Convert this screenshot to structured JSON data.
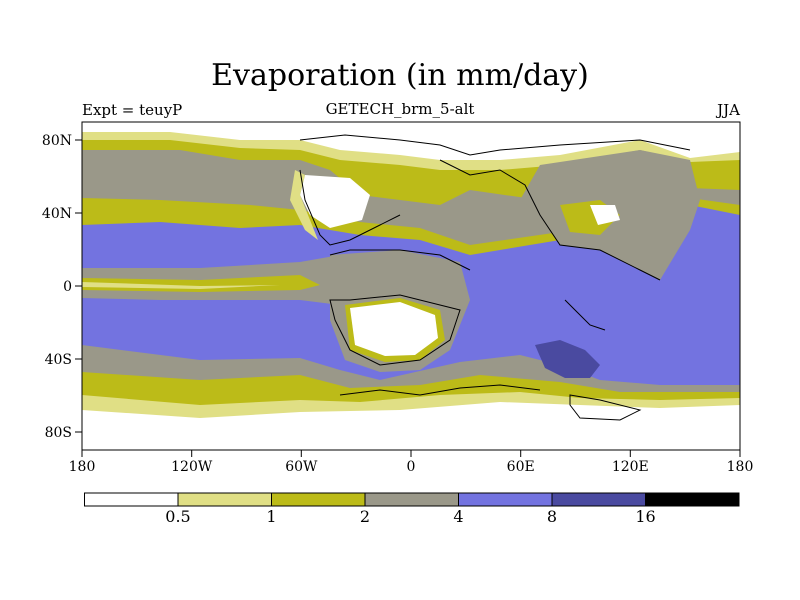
{
  "title": "Evaporation (in mm/day)",
  "subtitle_center": "GETECH_brm_5-alt",
  "subtitle_left": "Expt = teuyP",
  "subtitle_right": "JJA",
  "map": {
    "x_ticks": [
      "180",
      "120W",
      "60W",
      "0",
      "60E",
      "120E",
      "180"
    ],
    "y_ticks": [
      "80N",
      "40N",
      "0",
      "40S",
      "80S"
    ]
  },
  "colorbar": {
    "labels": [
      "0.5",
      "1",
      "2",
      "4",
      "8",
      "16"
    ],
    "colors": [
      "#ffffff",
      "#e0df85",
      "#bcbb18",
      "#9a9889",
      "#7373e0",
      "#4a4aa0",
      "#000000"
    ]
  },
  "colors": {
    "white": "#ffffff",
    "pale_yellow": "#e0df85",
    "olive": "#bcbb18",
    "gray": "#9a9889",
    "blue": "#7373e0",
    "dark_blue": "#4a4aa0"
  }
}
